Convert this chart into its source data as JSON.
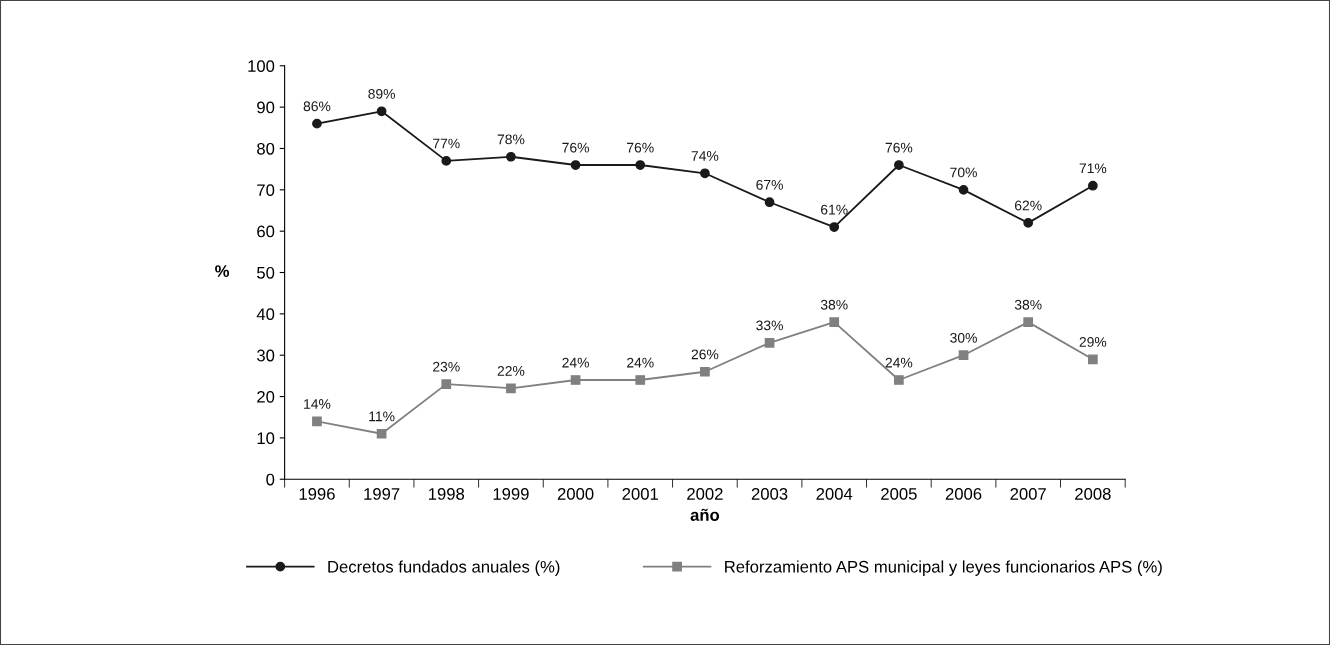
{
  "chart_data": {
    "type": "line",
    "xlabel": "año",
    "ylabel": "%",
    "categories": [
      "1996",
      "1997",
      "1998",
      "1999",
      "2000",
      "2001",
      "2002",
      "2003",
      "2004",
      "2005",
      "2006",
      "2007",
      "2008"
    ],
    "ylim": [
      0,
      100
    ],
    "yticks": [
      0,
      10,
      20,
      30,
      40,
      50,
      60,
      70,
      80,
      90,
      100
    ],
    "grid": false,
    "legend": "bottom",
    "line_style": "solid",
    "series": [
      {
        "name": "Decretos fundados anuales (%)",
        "color": "#1a1a1a",
        "marker": "circle",
        "values": [
          86,
          89,
          77,
          78,
          76,
          76,
          74,
          67,
          61,
          76,
          70,
          62,
          71
        ],
        "value_labels": [
          "86%",
          "89%",
          "77%",
          "78%",
          "76%",
          "76%",
          "74%",
          "67%",
          "61%",
          "76%",
          "70%",
          "62%",
          "71%"
        ]
      },
      {
        "name": "Reforzamiento APS municipal y leyes funcionarios APS (%)",
        "color": "#808080",
        "marker": "square",
        "values": [
          14,
          11,
          23,
          22,
          24,
          24,
          26,
          33,
          38,
          24,
          30,
          38,
          29
        ],
        "value_labels": [
          "14%",
          "11%",
          "23%",
          "22%",
          "24%",
          "24%",
          "26%",
          "33%",
          "38%",
          "24%",
          "30%",
          "38%",
          "29%"
        ]
      }
    ]
  }
}
